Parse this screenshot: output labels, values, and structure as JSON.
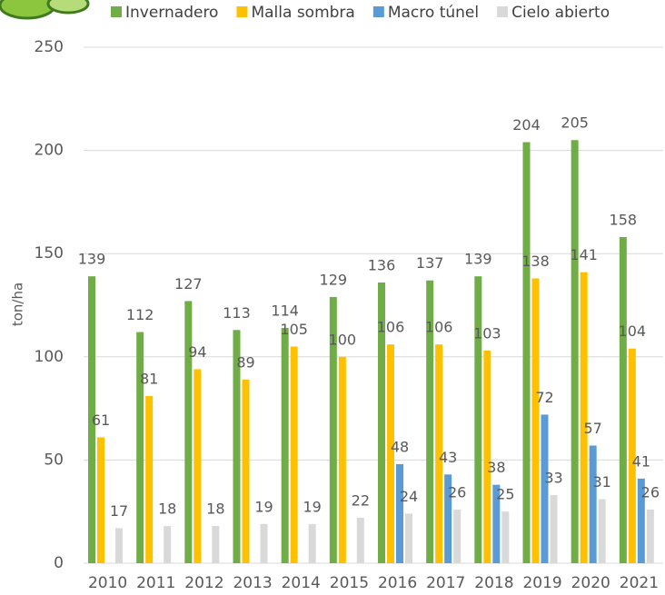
{
  "chart_data": {
    "type": "bar",
    "y_label": "ton/ha",
    "categories": [
      "2010",
      "2011",
      "2012",
      "2013",
      "2014",
      "2015",
      "2016",
      "2017",
      "2018",
      "2019",
      "2020",
      "2021"
    ],
    "series": [
      {
        "name": "Invernadero",
        "color": "#70ad47",
        "values": [
          139,
          112,
          127,
          113,
          114,
          129,
          136,
          137,
          139,
          204,
          205,
          158
        ]
      },
      {
        "name": "Malla sombra",
        "color": "#ffc000",
        "values": [
          61,
          81,
          94,
          89,
          105,
          100,
          106,
          106,
          103,
          138,
          141,
          104
        ]
      },
      {
        "name": "Macro túnel",
        "color": "#5b9bd5",
        "values": [
          null,
          null,
          null,
          null,
          null,
          null,
          48,
          43,
          38,
          72,
          57,
          41
        ]
      },
      {
        "name": "Cielo abierto",
        "color": "#d9d9d9",
        "values": [
          17,
          18,
          18,
          19,
          19,
          22,
          24,
          26,
          25,
          33,
          31,
          26
        ]
      }
    ],
    "ylim": [
      0,
      250
    ],
    "yticks": [
      0,
      50,
      100,
      150,
      200,
      250
    ],
    "grid": true
  }
}
